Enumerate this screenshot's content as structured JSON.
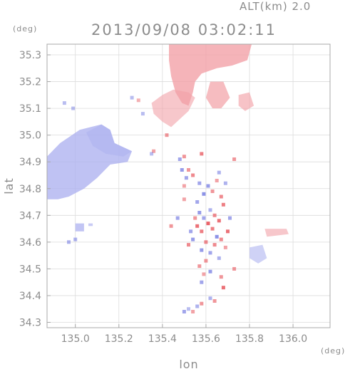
{
  "header": {
    "altitude_label": "ALT(km)  2.0",
    "timestamp": "2013/09/08 03:02:11"
  },
  "colors": {
    "positive": "#f2a0a6",
    "negative": "#aeb2f0",
    "axis": "#a8a8a8",
    "grid": "#dcdcdc",
    "text": "#8c8c8c"
  },
  "chart_data": {
    "type": "heatmap",
    "title": "2013/09/08 03:02:11",
    "annotation": "ALT(km)  2.0",
    "xlabel": "lon",
    "ylabel": "lat",
    "x_unit": "(deg)",
    "y_unit": "(deg)",
    "xlim": [
      134.87,
      136.17
    ],
    "ylim": [
      34.28,
      35.34
    ],
    "x_ticks": [
      135.0,
      135.2,
      135.4,
      135.6,
      135.8,
      136.0
    ],
    "x_tick_labels": [
      "135.0",
      "135.2",
      "135.4",
      "135.6",
      "135.8",
      "136.0"
    ],
    "y_ticks": [
      34.3,
      34.4,
      34.5,
      34.6,
      34.7,
      34.8,
      34.9,
      35.0,
      35.1,
      35.2,
      35.3
    ],
    "y_tick_labels": [
      "34.3",
      "34.4",
      "34.5",
      "34.6",
      "34.7",
      "34.8",
      "34.9",
      "35.0",
      "35.1",
      "35.2",
      "35.3"
    ],
    "grid": true,
    "regions": [
      {
        "name": "west-large-negative",
        "sign": "negative",
        "intensity": 0.55,
        "polygon": [
          [
            134.87,
            34.92
          ],
          [
            134.93,
            34.97
          ],
          [
            135.02,
            35.02
          ],
          [
            135.12,
            35.04
          ],
          [
            135.16,
            35.02
          ],
          [
            135.18,
            34.97
          ],
          [
            135.26,
            34.94
          ],
          [
            135.24,
            34.9
          ],
          [
            135.16,
            34.89
          ],
          [
            135.1,
            34.84
          ],
          [
            135.04,
            34.8
          ],
          [
            134.97,
            34.77
          ],
          [
            134.92,
            34.76
          ],
          [
            134.87,
            34.76
          ]
        ]
      },
      {
        "name": "west-upper-light",
        "sign": "negative",
        "intensity": 0.3,
        "polygon": [
          [
            135.05,
            35.01
          ],
          [
            135.12,
            35.04
          ],
          [
            135.16,
            35.02
          ],
          [
            135.18,
            34.97
          ],
          [
            135.26,
            34.94
          ],
          [
            135.22,
            34.92
          ],
          [
            135.14,
            34.93
          ],
          [
            135.08,
            34.96
          ]
        ]
      },
      {
        "name": "west-small-blob-1",
        "sign": "negative",
        "intensity": 0.5,
        "polygon": [
          [
            135.0,
            34.67
          ],
          [
            135.04,
            34.67
          ],
          [
            135.04,
            34.64
          ],
          [
            135.0,
            34.64
          ]
        ]
      },
      {
        "name": "west-small-blob-2",
        "sign": "negative",
        "intensity": 0.4,
        "polygon": [
          [
            135.06,
            34.67
          ],
          [
            135.08,
            34.67
          ],
          [
            135.08,
            34.66
          ],
          [
            135.06,
            34.66
          ]
        ]
      },
      {
        "name": "north-upper-positive",
        "sign": "positive",
        "intensity": 0.55,
        "polygon": [
          [
            135.43,
            35.34
          ],
          [
            135.81,
            35.34
          ],
          [
            135.79,
            35.28
          ],
          [
            135.72,
            35.26
          ],
          [
            135.65,
            35.25
          ],
          [
            135.58,
            35.23
          ],
          [
            135.55,
            35.2
          ],
          [
            135.54,
            35.16
          ],
          [
            135.52,
            35.11
          ],
          [
            135.49,
            35.12
          ],
          [
            135.46,
            35.16
          ],
          [
            135.44,
            35.22
          ],
          [
            135.43,
            35.28
          ]
        ]
      },
      {
        "name": "north-lower-positive",
        "sign": "positive",
        "intensity": 0.3,
        "polygon": [
          [
            135.45,
            35.17
          ],
          [
            135.52,
            35.16
          ],
          [
            135.55,
            35.14
          ],
          [
            135.52,
            35.09
          ],
          [
            135.48,
            35.06
          ],
          [
            135.44,
            35.03
          ],
          [
            135.4,
            35.05
          ],
          [
            135.36,
            35.08
          ],
          [
            135.35,
            35.12
          ],
          [
            135.4,
            35.15
          ]
        ]
      },
      {
        "name": "north-right-blob",
        "sign": "positive",
        "intensity": 0.45,
        "polygon": [
          [
            135.62,
            35.2
          ],
          [
            135.68,
            35.2
          ],
          [
            135.71,
            35.14
          ],
          [
            135.67,
            35.1
          ],
          [
            135.63,
            35.1
          ],
          [
            135.6,
            35.14
          ]
        ]
      },
      {
        "name": "north-far-right-blob",
        "sign": "positive",
        "intensity": 0.35,
        "polygon": [
          [
            135.75,
            35.15
          ],
          [
            135.8,
            35.16
          ],
          [
            135.82,
            35.11
          ],
          [
            135.78,
            35.09
          ],
          [
            135.75,
            35.11
          ]
        ]
      },
      {
        "name": "east-small-positive",
        "sign": "positive",
        "intensity": 0.3,
        "polygon": [
          [
            135.87,
            34.65
          ],
          [
            135.97,
            34.65
          ],
          [
            135.98,
            34.63
          ],
          [
            135.88,
            34.62
          ]
        ]
      },
      {
        "name": "east-small-negative",
        "sign": "negative",
        "intensity": 0.3,
        "polygon": [
          [
            135.8,
            34.58
          ],
          [
            135.86,
            34.59
          ],
          [
            135.88,
            34.54
          ],
          [
            135.84,
            34.52
          ],
          [
            135.8,
            34.54
          ]
        ]
      }
    ],
    "points": [
      [
        135.56,
        34.66,
        0.8
      ],
      [
        135.57,
        34.71,
        -0.6
      ],
      [
        135.58,
        34.64,
        0.7
      ],
      [
        135.59,
        34.69,
        -0.5
      ],
      [
        135.6,
        34.6,
        0.6
      ],
      [
        135.61,
        34.67,
        0.9
      ],
      [
        135.62,
        34.72,
        -0.4
      ],
      [
        135.63,
        34.65,
        0.7
      ],
      [
        135.64,
        34.7,
        0.6
      ],
      [
        135.65,
        34.62,
        -0.7
      ],
      [
        135.66,
        34.68,
        0.8
      ],
      [
        135.67,
        34.61,
        0.6
      ],
      [
        135.68,
        34.74,
        0.7
      ],
      [
        135.54,
        34.61,
        -0.6
      ],
      [
        135.55,
        34.69,
        0.5
      ],
      [
        135.53,
        34.64,
        -0.5
      ],
      [
        135.52,
        34.59,
        0.6
      ],
      [
        135.58,
        34.57,
        -0.6
      ],
      [
        135.6,
        34.53,
        0.5
      ],
      [
        135.62,
        34.56,
        -0.5
      ],
      [
        135.64,
        34.59,
        0.6
      ],
      [
        135.66,
        34.54,
        -0.4
      ],
      [
        135.67,
        34.47,
        0.5
      ],
      [
        135.62,
        34.49,
        -0.6
      ],
      [
        135.59,
        34.48,
        0.4
      ],
      [
        135.58,
        34.45,
        -0.5
      ],
      [
        135.57,
        34.51,
        0.5
      ],
      [
        135.7,
        34.64,
        0.8
      ],
      [
        135.71,
        34.69,
        -0.5
      ],
      [
        135.69,
        34.58,
        0.4
      ],
      [
        135.56,
        34.75,
        -0.5
      ],
      [
        135.59,
        34.78,
        -0.7
      ],
      [
        135.61,
        34.81,
        -0.6
      ],
      [
        135.63,
        34.79,
        0.5
      ],
      [
        135.65,
        34.83,
        0.4
      ],
      [
        135.67,
        34.77,
        0.6
      ],
      [
        135.69,
        34.82,
        -0.4
      ],
      [
        135.57,
        34.82,
        -0.5
      ],
      [
        135.54,
        34.85,
        0.6
      ],
      [
        135.51,
        34.84,
        -0.5
      ],
      [
        135.5,
        34.81,
        0.4
      ],
      [
        135.49,
        34.87,
        -0.6
      ],
      [
        135.52,
        34.87,
        0.5
      ],
      [
        135.48,
        34.91,
        -0.5
      ],
      [
        135.5,
        34.92,
        0.5
      ],
      [
        135.58,
        34.93,
        0.7
      ],
      [
        135.66,
        34.86,
        -0.4
      ],
      [
        135.73,
        34.91,
        0.5
      ],
      [
        135.68,
        34.43,
        0.8
      ],
      [
        135.62,
        34.39,
        -0.4
      ],
      [
        135.64,
        34.38,
        0.5
      ],
      [
        135.58,
        34.37,
        0.5
      ],
      [
        135.56,
        34.36,
        -0.4
      ],
      [
        135.52,
        34.35,
        -0.3
      ],
      [
        135.5,
        34.34,
        -0.5
      ],
      [
        135.54,
        34.34,
        0.4
      ],
      [
        135.36,
        34.94,
        0.4
      ],
      [
        135.35,
        34.93,
        -0.3
      ],
      [
        135.42,
        35.0,
        0.5
      ],
      [
        135.31,
        35.08,
        -0.3
      ],
      [
        135.44,
        34.66,
        0.5
      ],
      [
        135.47,
        34.69,
        -0.5
      ],
      [
        135.5,
        34.76,
        0.4
      ],
      [
        135.73,
        34.5,
        0.5
      ],
      [
        134.95,
        35.12,
        -0.3
      ],
      [
        134.99,
        35.1,
        -0.3
      ],
      [
        135.0,
        34.61,
        -0.4
      ],
      [
        134.97,
        34.6,
        -0.4
      ],
      [
        135.29,
        35.13,
        0.3
      ],
      [
        135.26,
        35.14,
        -0.3
      ]
    ]
  }
}
